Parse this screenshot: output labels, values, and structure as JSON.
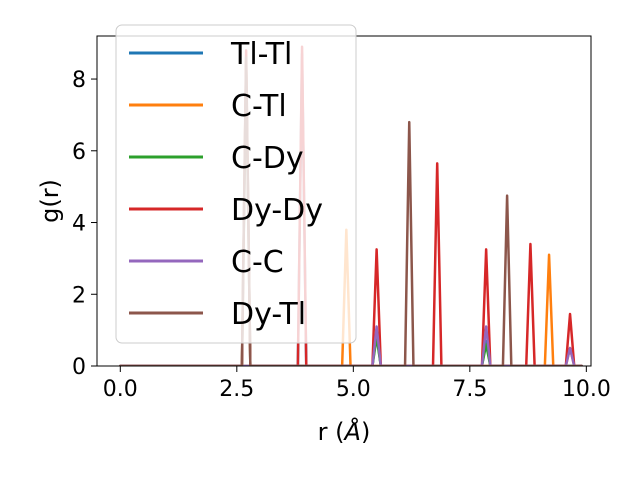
{
  "chart_data": {
    "type": "line",
    "title": "",
    "xlabel_main": "r (",
    "xlabel_unit": "Å",
    "xlabel_end": ")",
    "ylabel": "g(r)",
    "xlim": [
      -0.5,
      10.1
    ],
    "ylim": [
      0,
      9.2
    ],
    "xticks": [
      0.0,
      2.5,
      5.0,
      7.5,
      10.0
    ],
    "xtick_labels": [
      "0.0",
      "2.5",
      "5.0",
      "7.5",
      "10.0"
    ],
    "yticks": [
      0,
      2,
      4,
      6,
      8
    ],
    "ytick_labels": [
      "0",
      "2",
      "4",
      "6",
      "8"
    ],
    "grid": false,
    "legend_position": "upper-left",
    "peak_half_width": 0.09,
    "x_max": 9.9,
    "series": [
      {
        "name": "Tl-Tl",
        "color": "#1f77b4",
        "peaks": [
          [
            3.9,
            8.7
          ],
          [
            5.5,
            0.9
          ],
          [
            7.85,
            0.7
          ]
        ]
      },
      {
        "name": "C-Tl",
        "color": "#ff7f0e",
        "peaks": [
          [
            4.85,
            3.8
          ],
          [
            9.2,
            3.1
          ],
          [
            9.65,
            0.5
          ]
        ]
      },
      {
        "name": "C-Dy",
        "color": "#2ca02c",
        "peaks": [
          [
            2.7,
            8.5
          ],
          [
            5.5,
            0.8
          ],
          [
            7.85,
            0.6
          ]
        ]
      },
      {
        "name": "Dy-Dy",
        "color": "#d62728",
        "peaks": [
          [
            2.7,
            8.8
          ],
          [
            3.9,
            8.9
          ],
          [
            5.5,
            3.25
          ],
          [
            6.8,
            5.65
          ],
          [
            7.85,
            3.25
          ],
          [
            8.8,
            3.4
          ],
          [
            9.65,
            1.45
          ]
        ]
      },
      {
        "name": "C-C",
        "color": "#9467bd",
        "peaks": [
          [
            5.5,
            1.1
          ],
          [
            7.85,
            1.1
          ],
          [
            9.65,
            0.5
          ]
        ]
      },
      {
        "name": "Dy-Tl",
        "color": "#8c564b",
        "peaks": [
          [
            2.7,
            8.6
          ],
          [
            6.2,
            6.8
          ],
          [
            8.3,
            4.75
          ]
        ]
      }
    ]
  }
}
